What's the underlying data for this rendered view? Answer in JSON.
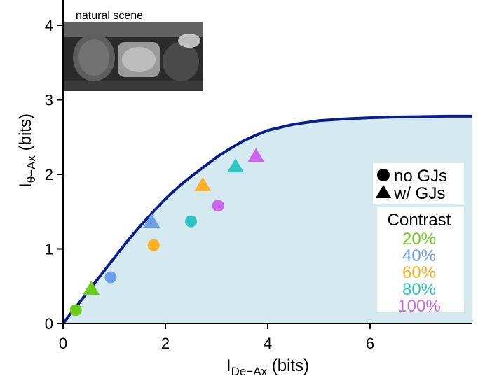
{
  "chart_data": {
    "type": "scatter",
    "title": "",
    "xlabel": {
      "main": "I",
      "sub": "De−Ax",
      "unit": " (bits)"
    },
    "ylabel": {
      "main": "I",
      "sub": "θ−Ax",
      "unit": " (bits)"
    },
    "xlim": [
      0,
      8
    ],
    "ylim": [
      0,
      4.2
    ],
    "x_ticks": [
      0,
      2,
      4,
      6
    ],
    "y_ticks": [
      0,
      1,
      2,
      3,
      4
    ],
    "grid": false,
    "inset_label": "natural scene",
    "bound_curve": {
      "color": "#0a1f8f",
      "fill": "#d5e9f0",
      "x": [
        0,
        0.25,
        0.5,
        0.75,
        1,
        1.25,
        1.5,
        1.75,
        2,
        2.25,
        2.5,
        2.75,
        3,
        3.25,
        3.5,
        3.75,
        4,
        4.5,
        5,
        5.5,
        6,
        6.5,
        7,
        7.5,
        8
      ],
      "y": [
        0,
        0.22,
        0.44,
        0.66,
        0.88,
        1.1,
        1.3,
        1.49,
        1.67,
        1.83,
        1.97,
        2.1,
        2.23,
        2.34,
        2.44,
        2.52,
        2.59,
        2.67,
        2.72,
        2.745,
        2.76,
        2.77,
        2.775,
        2.78,
        2.78
      ]
    },
    "legend_markers": [
      {
        "label": "no GJs",
        "marker": "circle"
      },
      {
        "label": "w/ GJs",
        "marker": "triangle"
      }
    ],
    "contrast_title": "Contrast",
    "series": [
      {
        "name": "20%",
        "color": "#6ccc1a",
        "no_gj": [
          {
            "x": 0.25,
            "y": 0.18
          }
        ],
        "w_gj": [
          {
            "x": 0.55,
            "y": 0.47
          }
        ]
      },
      {
        "name": "40%",
        "color": "#6d9eeb",
        "no_gj": [
          {
            "x": 0.93,
            "y": 0.62
          }
        ],
        "w_gj": [
          {
            "x": 1.73,
            "y": 1.37
          }
        ]
      },
      {
        "name": "60%",
        "color": "#ffb020",
        "no_gj": [
          {
            "x": 1.77,
            "y": 1.05
          }
        ],
        "w_gj": [
          {
            "x": 2.73,
            "y": 1.86
          }
        ]
      },
      {
        "name": "80%",
        "color": "#2ec4c4",
        "no_gj": [
          {
            "x": 2.5,
            "y": 1.37
          }
        ],
        "w_gj": [
          {
            "x": 3.37,
            "y": 2.11
          }
        ]
      },
      {
        "name": "100%",
        "color": "#cc66ee",
        "no_gj": [
          {
            "x": 3.03,
            "y": 1.58
          }
        ],
        "w_gj": [
          {
            "x": 3.77,
            "y": 2.25
          }
        ]
      }
    ]
  }
}
